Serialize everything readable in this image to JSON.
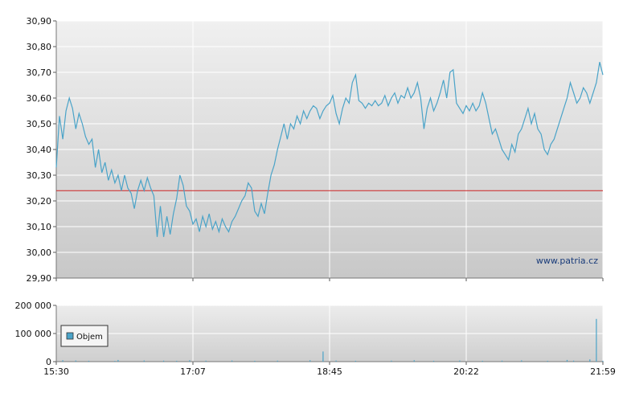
{
  "chart_data": [
    {
      "type": "line",
      "panel": "price",
      "title": "",
      "xlabel": "",
      "ylabel": "",
      "ylim": [
        29.9,
        30.9
      ],
      "y_ticks": [
        "30,90",
        "30,80",
        "30,70",
        "30,60",
        "30,50",
        "30,40",
        "30,30",
        "30,20",
        "30,10",
        "30,00",
        "29,90"
      ],
      "reference_line": {
        "value": 30.24,
        "color": "#cc2222"
      },
      "watermark": "www.patria.cz",
      "line_color": "#4aa3c8",
      "grid": true,
      "series": [
        {
          "name": "",
          "points": [
            [
              0,
              30.33
            ],
            [
              1,
              30.53
            ],
            [
              2,
              30.44
            ],
            [
              3,
              30.55
            ],
            [
              4,
              30.6
            ],
            [
              5,
              30.56
            ],
            [
              6,
              30.48
            ],
            [
              7,
              30.54
            ],
            [
              8,
              30.5
            ],
            [
              9,
              30.45
            ],
            [
              10,
              30.42
            ],
            [
              11,
              30.44
            ],
            [
              12,
              30.33
            ],
            [
              13,
              30.4
            ],
            [
              14,
              30.31
            ],
            [
              15,
              30.35
            ],
            [
              16,
              30.28
            ],
            [
              17,
              30.32
            ],
            [
              18,
              30.27
            ],
            [
              19,
              30.3
            ],
            [
              20,
              30.24
            ],
            [
              21,
              30.3
            ],
            [
              22,
              30.25
            ],
            [
              23,
              30.23
            ],
            [
              24,
              30.17
            ],
            [
              25,
              30.24
            ],
            [
              26,
              30.28
            ],
            [
              27,
              30.24
            ],
            [
              28,
              30.29
            ],
            [
              29,
              30.25
            ],
            [
              30,
              30.22
            ],
            [
              31,
              30.06
            ],
            [
              32,
              30.18
            ],
            [
              33,
              30.06
            ],
            [
              34,
              30.14
            ],
            [
              35,
              30.07
            ],
            [
              36,
              30.15
            ],
            [
              37,
              30.21
            ],
            [
              38,
              30.3
            ],
            [
              39,
              30.26
            ],
            [
              40,
              30.18
            ],
            [
              41,
              30.16
            ],
            [
              42,
              30.11
            ],
            [
              43,
              30.13
            ],
            [
              44,
              30.08
            ],
            [
              45,
              30.14
            ],
            [
              46,
              30.1
            ],
            [
              47,
              30.15
            ],
            [
              48,
              30.09
            ],
            [
              49,
              30.12
            ],
            [
              50,
              30.08
            ],
            [
              51,
              30.13
            ],
            [
              52,
              30.1
            ],
            [
              53,
              30.08
            ],
            [
              54,
              30.12
            ],
            [
              55,
              30.14
            ],
            [
              56,
              30.17
            ],
            [
              57,
              30.2
            ],
            [
              58,
              30.22
            ],
            [
              59,
              30.27
            ],
            [
              60,
              30.25
            ],
            [
              61,
              30.16
            ],
            [
              62,
              30.14
            ],
            [
              63,
              30.19
            ],
            [
              64,
              30.15
            ],
            [
              65,
              30.23
            ],
            [
              66,
              30.3
            ],
            [
              67,
              30.34
            ],
            [
              68,
              30.4
            ],
            [
              69,
              30.45
            ],
            [
              70,
              30.5
            ],
            [
              71,
              30.44
            ],
            [
              72,
              30.5
            ],
            [
              73,
              30.48
            ],
            [
              74,
              30.53
            ],
            [
              75,
              30.5
            ],
            [
              76,
              30.55
            ],
            [
              77,
              30.52
            ],
            [
              78,
              30.55
            ],
            [
              79,
              30.57
            ],
            [
              80,
              30.56
            ],
            [
              81,
              30.52
            ],
            [
              82,
              30.55
            ],
            [
              83,
              30.57
            ],
            [
              84,
              30.58
            ],
            [
              85,
              30.61
            ],
            [
              86,
              30.54
            ],
            [
              87,
              30.5
            ],
            [
              88,
              30.56
            ],
            [
              89,
              30.6
            ],
            [
              90,
              30.58
            ],
            [
              91,
              30.66
            ],
            [
              92,
              30.69
            ],
            [
              93,
              30.59
            ],
            [
              94,
              30.58
            ],
            [
              95,
              30.56
            ],
            [
              96,
              30.58
            ],
            [
              97,
              30.57
            ],
            [
              98,
              30.59
            ],
            [
              99,
              30.57
            ],
            [
              100,
              30.58
            ],
            [
              101,
              30.61
            ],
            [
              102,
              30.57
            ],
            [
              103,
              30.6
            ],
            [
              104,
              30.62
            ],
            [
              105,
              30.58
            ],
            [
              106,
              30.61
            ],
            [
              107,
              30.6
            ],
            [
              108,
              30.64
            ],
            [
              109,
              30.6
            ],
            [
              110,
              30.62
            ],
            [
              111,
              30.66
            ],
            [
              112,
              30.6
            ],
            [
              113,
              30.48
            ],
            [
              114,
              30.56
            ],
            [
              115,
              30.6
            ],
            [
              116,
              30.55
            ],
            [
              117,
              30.58
            ],
            [
              118,
              30.62
            ],
            [
              119,
              30.67
            ],
            [
              120,
              30.6
            ],
            [
              121,
              30.7
            ],
            [
              122,
              30.71
            ],
            [
              123,
              30.58
            ],
            [
              124,
              30.56
            ],
            [
              125,
              30.54
            ],
            [
              126,
              30.57
            ],
            [
              127,
              30.55
            ],
            [
              128,
              30.58
            ],
            [
              129,
              30.55
            ],
            [
              130,
              30.57
            ],
            [
              131,
              30.62
            ],
            [
              132,
              30.58
            ],
            [
              133,
              30.52
            ],
            [
              134,
              30.46
            ],
            [
              135,
              30.48
            ],
            [
              136,
              30.44
            ],
            [
              137,
              30.4
            ],
            [
              138,
              30.38
            ],
            [
              139,
              30.36
            ],
            [
              140,
              30.42
            ],
            [
              141,
              30.39
            ],
            [
              142,
              30.46
            ],
            [
              143,
              30.48
            ],
            [
              144,
              30.52
            ],
            [
              145,
              30.56
            ],
            [
              146,
              30.5
            ],
            [
              147,
              30.54
            ],
            [
              148,
              30.48
            ],
            [
              149,
              30.46
            ],
            [
              150,
              30.4
            ],
            [
              151,
              30.38
            ],
            [
              152,
              30.42
            ],
            [
              153,
              30.44
            ],
            [
              154,
              30.48
            ],
            [
              155,
              30.52
            ],
            [
              156,
              30.56
            ],
            [
              157,
              30.6
            ],
            [
              158,
              30.66
            ],
            [
              159,
              30.62
            ],
            [
              160,
              30.58
            ],
            [
              161,
              30.6
            ],
            [
              162,
              30.64
            ],
            [
              163,
              30.62
            ],
            [
              164,
              30.58
            ],
            [
              165,
              30.62
            ],
            [
              166,
              30.66
            ],
            [
              167,
              30.74
            ],
            [
              168,
              30.69
            ]
          ]
        }
      ],
      "x_axis": {
        "range": [
          0,
          168
        ],
        "ticks": [
          0,
          42,
          84,
          126,
          168
        ]
      }
    },
    {
      "type": "bar",
      "panel": "volume",
      "title": "",
      "ylim": [
        0,
        200000
      ],
      "y_ticks": [
        "200 000",
        "100 000",
        "0"
      ],
      "legend": {
        "label": "Objem",
        "position": "top-left",
        "color": "#4aa3c8"
      },
      "bar_color": "#4aa3c8",
      "x_axis": {
        "range": [
          0,
          168
        ],
        "ticks": [
          0,
          42,
          84,
          126,
          168
        ],
        "tick_labels": [
          "15:30",
          "17:07",
          "18:45",
          "20:22",
          "21:59"
        ]
      },
      "series": [
        {
          "name": "Objem",
          "points": [
            [
              2,
              5000
            ],
            [
              6,
              4000
            ],
            [
              10,
              3000
            ],
            [
              18,
              2500
            ],
            [
              19,
              6000
            ],
            [
              27,
              4000
            ],
            [
              33,
              3500
            ],
            [
              37,
              3000
            ],
            [
              41,
              5000
            ],
            [
              46,
              3500
            ],
            [
              54,
              4000
            ],
            [
              61,
              3000
            ],
            [
              68,
              3500
            ],
            [
              78,
              5000
            ],
            [
              82,
              36000
            ],
            [
              86,
              4000
            ],
            [
              92,
              3000
            ],
            [
              103,
              3500
            ],
            [
              110,
              5000
            ],
            [
              116,
              3000
            ],
            [
              124,
              4000
            ],
            [
              131,
              3000
            ],
            [
              137,
              3500
            ],
            [
              143,
              4500
            ],
            [
              151,
              3000
            ],
            [
              157,
              6000
            ],
            [
              159,
              3500
            ],
            [
              164,
              8000
            ],
            [
              166,
              152000
            ],
            [
              168,
              3000
            ]
          ]
        }
      ]
    }
  ]
}
